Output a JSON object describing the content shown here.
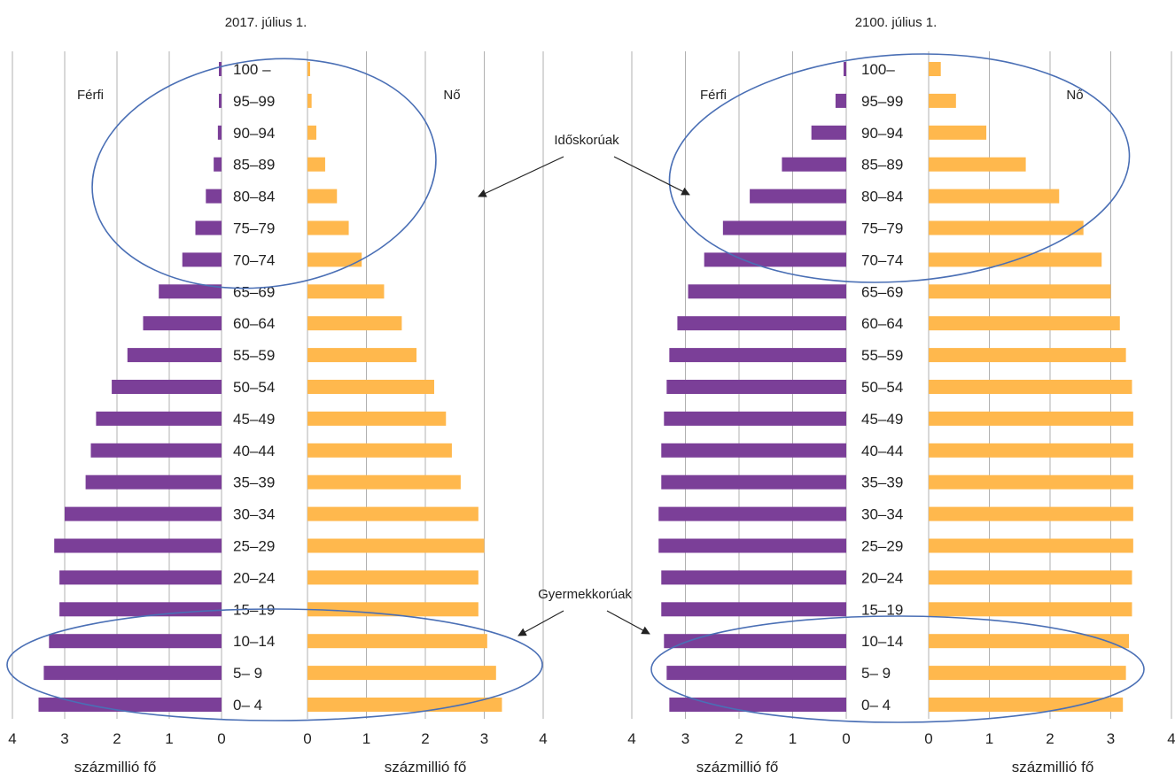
{
  "colors": {
    "male": "#7b3f98",
    "female": "#ffb84d",
    "grid": "#b0b0b0",
    "ellipse": "#4a6fb5",
    "arrow": "#222222"
  },
  "annotations": {
    "elderly": "Időskorúak",
    "children": "Gyermekkorúak"
  },
  "chart_data": [
    {
      "type": "bar",
      "orientation": "horizontal",
      "subtype": "population-pyramid",
      "title": "2017. július 1.",
      "male_label": "Férfi",
      "female_label": "Nő",
      "xlabel_left": "százmillió fő",
      "xlabel_right": "százmillió fő",
      "xlim": [
        0,
        4
      ],
      "xticks": [
        "0",
        "1",
        "2",
        "3",
        "4"
      ],
      "grid": "vertical",
      "categories": [
        "0– 4",
        "5– 9",
        "10–14",
        "15–19",
        "20–24",
        "25–29",
        "30–34",
        "35–39",
        "40–44",
        "45–49",
        "50–54",
        "55–59",
        "60–64",
        "65–69",
        "70–74",
        "75–79",
        "80–84",
        "85–89",
        "90–94",
        "95–99",
        "100 –"
      ],
      "series": [
        {
          "name": "Férfi",
          "values": [
            3.5,
            3.4,
            3.3,
            3.1,
            3.1,
            3.2,
            3.0,
            2.6,
            2.5,
            2.4,
            2.1,
            1.8,
            1.5,
            1.2,
            0.75,
            0.5,
            0.3,
            0.15,
            0.07,
            0.03,
            0.03
          ]
        },
        {
          "name": "Nő",
          "values": [
            3.3,
            3.2,
            3.05,
            2.9,
            2.9,
            3.0,
            2.9,
            2.6,
            2.45,
            2.35,
            2.15,
            1.85,
            1.6,
            1.3,
            0.92,
            0.7,
            0.5,
            0.3,
            0.15,
            0.07,
            0.03
          ]
        }
      ]
    },
    {
      "type": "bar",
      "orientation": "horizontal",
      "subtype": "population-pyramid",
      "title": "2100. július 1.",
      "male_label": "Férfi",
      "female_label": "Nő",
      "xlabel_left": "százmillió fő",
      "xlabel_right": "százmillió fő",
      "xlim": [
        0,
        4
      ],
      "xticks": [
        "0",
        "1",
        "2",
        "3",
        "4"
      ],
      "grid": "vertical",
      "categories": [
        "0– 4",
        "5– 9",
        "10–14",
        "15–19",
        "20–24",
        "25–29",
        "30–34",
        "35–39",
        "40–44",
        "45–49",
        "50–54",
        "55–59",
        "60–64",
        "65–69",
        "70–74",
        "75–79",
        "80–84",
        "85–89",
        "90–94",
        "95–99",
        "100–"
      ],
      "series": [
        {
          "name": "Férfi",
          "values": [
            3.3,
            3.35,
            3.4,
            3.45,
            3.45,
            3.5,
            3.5,
            3.45,
            3.45,
            3.4,
            3.35,
            3.3,
            3.15,
            2.95,
            2.65,
            2.3,
            1.8,
            1.2,
            0.65,
            0.2,
            0.05
          ]
        },
        {
          "name": "Nő",
          "values": [
            3.2,
            3.25,
            3.3,
            3.35,
            3.35,
            3.37,
            3.37,
            3.37,
            3.37,
            3.37,
            3.35,
            3.25,
            3.15,
            3.0,
            2.85,
            2.55,
            2.15,
            1.6,
            0.95,
            0.45,
            0.2
          ]
        }
      ]
    }
  ]
}
